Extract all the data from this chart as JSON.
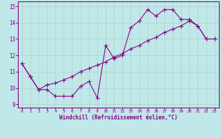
{
  "xlabel": "Windchill (Refroidissement éolien,°C)",
  "bg_color": "#c0e8e8",
  "line_color": "#880088",
  "grid_color": "#b0d0d0",
  "axis_color": "#880088",
  "xlim": [
    -0.5,
    23.5
  ],
  "ylim": [
    8.8,
    15.3
  ],
  "xticks": [
    0,
    1,
    2,
    3,
    4,
    5,
    6,
    7,
    8,
    9,
    10,
    11,
    12,
    13,
    14,
    15,
    16,
    17,
    18,
    19,
    20,
    21,
    22,
    23
  ],
  "yticks": [
    9,
    10,
    11,
    12,
    13,
    14,
    15
  ],
  "line1_x": [
    0,
    1,
    2,
    3,
    4,
    5,
    6,
    7,
    8,
    9,
    10,
    11,
    12,
    13,
    14,
    15,
    16,
    17,
    18,
    19,
    20,
    21,
    22,
    23
  ],
  "line1_y": [
    11.5,
    10.7,
    9.9,
    9.9,
    9.5,
    9.5,
    9.5,
    10.1,
    10.4,
    9.4,
    12.6,
    11.8,
    12.0,
    13.7,
    14.1,
    14.8,
    14.4,
    14.8,
    14.8,
    14.2,
    14.2,
    13.8,
    13.0,
    13.0
  ],
  "line2_x": [
    0,
    1,
    2,
    3,
    4,
    5,
    6,
    7,
    8,
    9,
    10,
    11,
    12,
    13,
    14,
    15,
    16,
    17,
    18,
    19,
    20,
    21,
    22,
    23
  ],
  "line2_y": [
    11.5,
    10.7,
    9.9,
    10.2,
    10.3,
    10.5,
    10.7,
    11.0,
    11.2,
    11.4,
    11.6,
    11.9,
    12.1,
    12.4,
    12.6,
    12.9,
    13.1,
    13.4,
    13.6,
    13.8,
    14.1,
    13.8,
    13.0,
    13.0
  ],
  "marker": "+",
  "markersize": 4,
  "linewidth": 0.8
}
